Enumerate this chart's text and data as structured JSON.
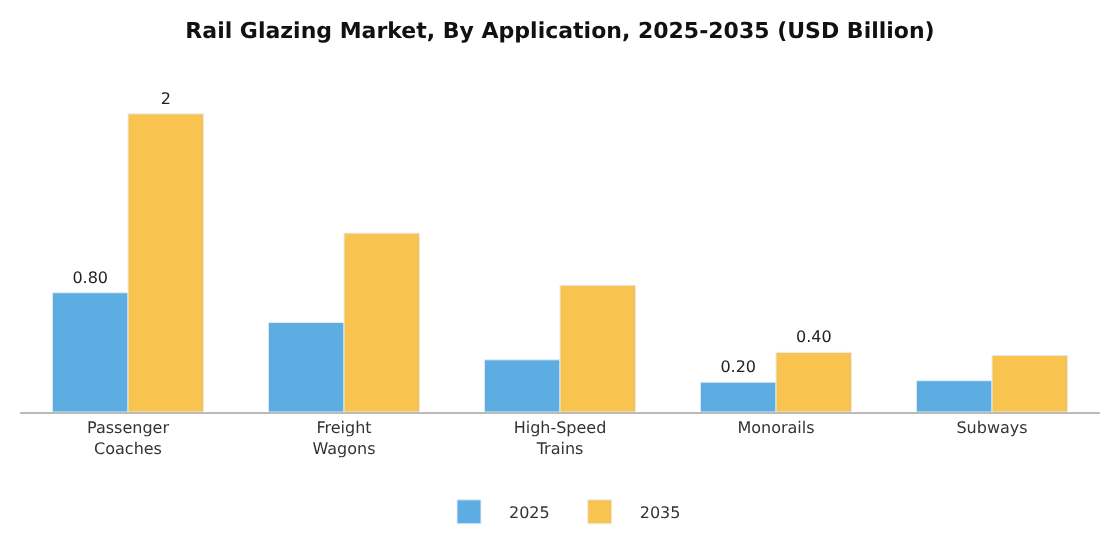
{
  "chart_data": {
    "type": "bar",
    "title": "Rail Glazing Market, By Application, 2025-2035 (USD Billion)",
    "legend": "bottom",
    "categories": [
      "Passenger Coaches",
      "Freight Wagons",
      "High-Speed Trains",
      "Monorails",
      "Subways"
    ],
    "series": [
      {
        "name": "2025",
        "color": "#5dade2",
        "values": [
          0.8,
          0.6,
          0.35,
          0.2,
          0.21
        ],
        "value_labels": [
          "0.80",
          null,
          null,
          "0.20",
          null
        ]
      },
      {
        "name": "2035",
        "color": "#f8c44f",
        "values": [
          2,
          1.2,
          0.85,
          0.4,
          0.38
        ],
        "value_labels": [
          "2",
          null,
          null,
          "0.40",
          null
        ]
      }
    ]
  }
}
